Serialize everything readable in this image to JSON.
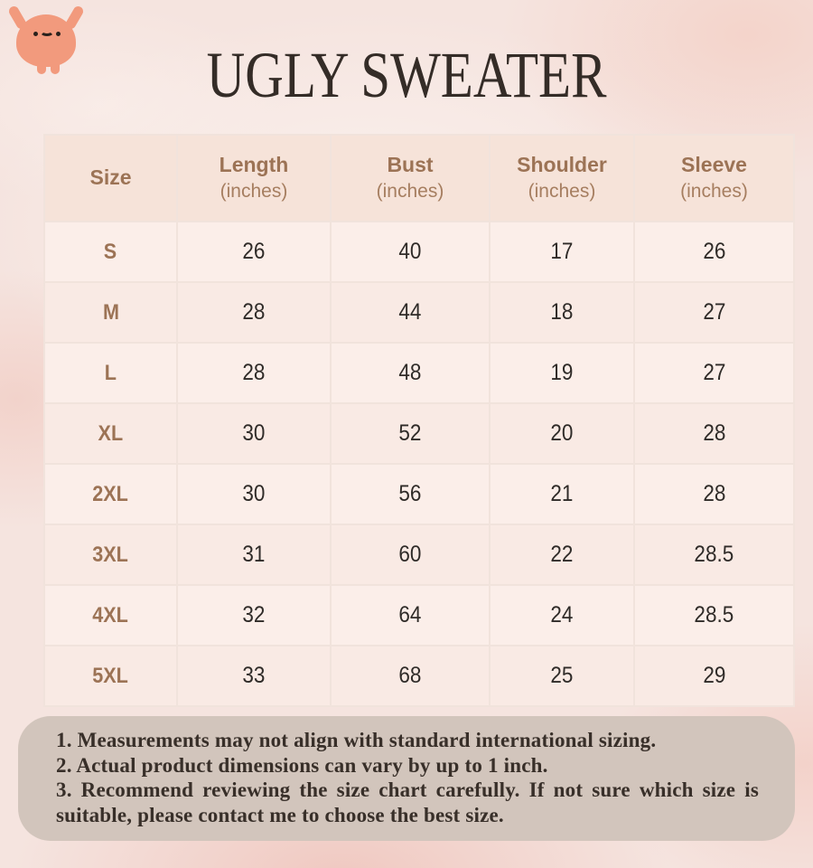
{
  "header": {
    "title": "UGLY SWEATER"
  },
  "mascot_icon": "smiling-blob-mascot",
  "size_chart": {
    "columns": [
      {
        "label": "Size",
        "sub": ""
      },
      {
        "label": "Length",
        "sub": "(inches)"
      },
      {
        "label": "Bust",
        "sub": "(inches)"
      },
      {
        "label": "Shoulder",
        "sub": "(inches)"
      },
      {
        "label": "Sleeve",
        "sub": "(inches)"
      }
    ],
    "rows": [
      {
        "size": "S",
        "values": [
          "26",
          "40",
          "17",
          "26"
        ]
      },
      {
        "size": "M",
        "values": [
          "28",
          "44",
          "18",
          "27"
        ]
      },
      {
        "size": "L",
        "values": [
          "28",
          "48",
          "19",
          "27"
        ]
      },
      {
        "size": "XL",
        "values": [
          "30",
          "52",
          "20",
          "28"
        ]
      },
      {
        "size": "2XL",
        "values": [
          "30",
          "56",
          "21",
          "28"
        ]
      },
      {
        "size": "3XL",
        "values": [
          "31",
          "60",
          "22",
          "28.5"
        ]
      },
      {
        "size": "4XL",
        "values": [
          "32",
          "64",
          "24",
          "28.5"
        ]
      },
      {
        "size": "5XL",
        "values": [
          "33",
          "68",
          "25",
          "29"
        ]
      }
    ]
  },
  "notes": [
    "1. Measurements may not align with standard international sizing.",
    "2. Actual product dimensions can vary by up to 1 inch.",
    "3. Recommend reviewing the size chart carefully. If not sure which size is suitable, please contact me to choose the best size."
  ],
  "colors": {
    "accent_brown": "#9C7355",
    "title_text": "#342C27",
    "value_text": "#2F2B28",
    "header_cell_bg": "#F6E3D9",
    "row_cell_bg": "#FBEEE9",
    "table_border": "#F1E3DC",
    "notes_bg": "#D2C5BC",
    "notes_text": "#382F29",
    "mascot_body": "#F29A7D",
    "page_bg": "#F5E4DF"
  }
}
